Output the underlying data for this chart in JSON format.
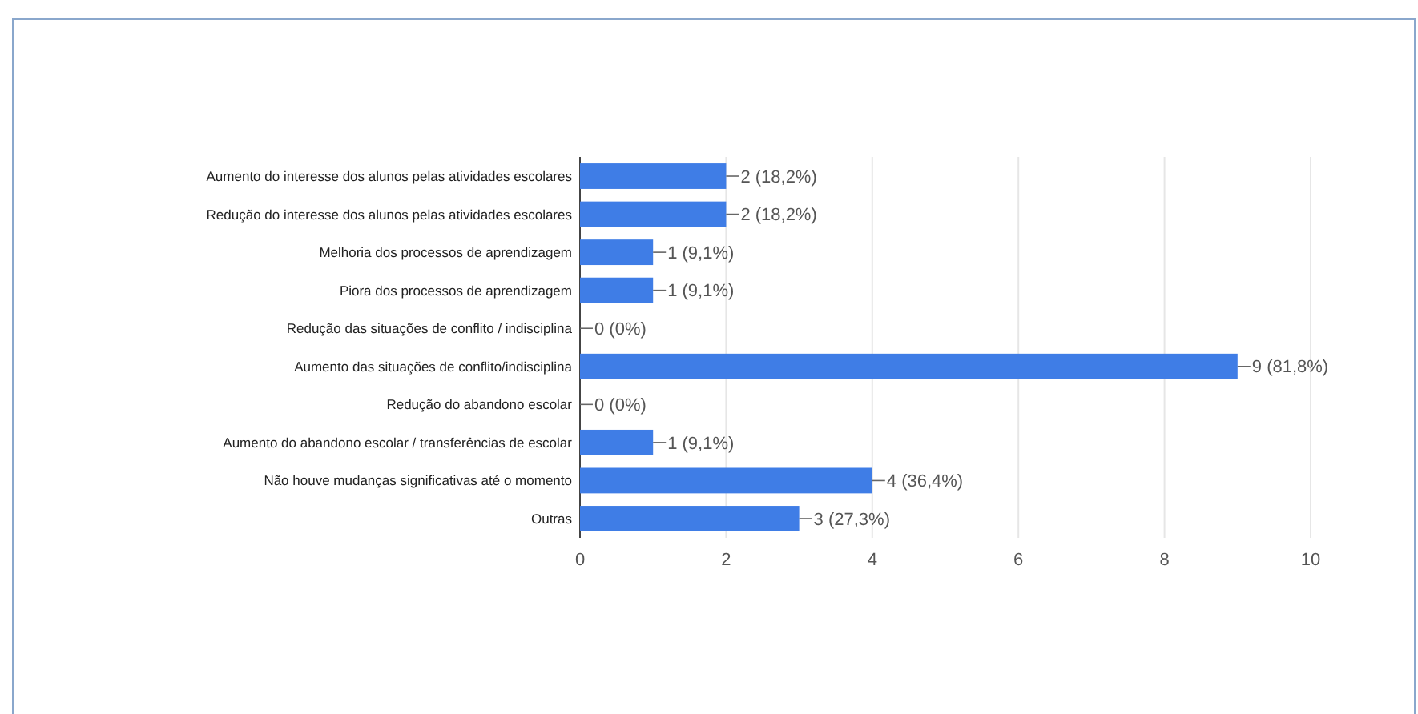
{
  "chart_data": {
    "type": "bar",
    "orientation": "horizontal",
    "categories": [
      "Aumento do interesse dos alunos pelas atividades escolares",
      "Redução do interesse dos alunos pelas atividades escolares",
      "Melhoria dos processos de aprendizagem",
      "Piora dos processos de aprendizagem",
      "Redução das situações de conflito / indisciplina",
      "Aumento das situações de conflito/indisciplina",
      "Redução do abandono escolar",
      "Aumento do abandono escolar / transferências de escolar",
      "Não houve mudanças significativas até o momento",
      "Outras"
    ],
    "values": [
      2,
      2,
      1,
      1,
      0,
      9,
      0,
      1,
      4,
      3
    ],
    "value_labels": [
      "2 (18,2%)",
      "2 (18,2%)",
      "1 (9,1%)",
      "1 (9,1%)",
      "0 (0%)",
      "9 (81,8%)",
      "0 (0%)",
      "1 (9,1%)",
      "4 (36,4%)",
      "3 (27,3%)"
    ],
    "color": "#3f7de6",
    "xlim": [
      0,
      10
    ],
    "xticks": [
      0,
      2,
      4,
      6,
      8,
      10
    ],
    "grid": "x"
  }
}
